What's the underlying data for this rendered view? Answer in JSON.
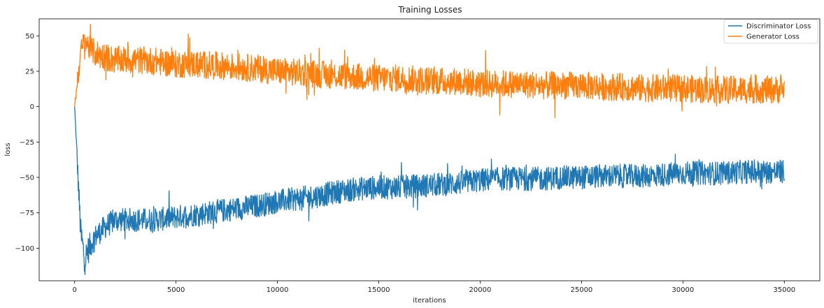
{
  "chart_data": {
    "type": "line",
    "title": "Training Losses",
    "xlabel": "iterations",
    "ylabel": "loss",
    "xlim": [
      -1750,
      36750
    ],
    "ylim": [
      -123,
      62
    ],
    "xticks": [
      0,
      5000,
      10000,
      15000,
      20000,
      25000,
      30000,
      35000
    ],
    "xtick_labels": [
      "0",
      "5000",
      "10000",
      "15000",
      "20000",
      "25000",
      "30000",
      "35000"
    ],
    "yticks": [
      50,
      25,
      0,
      -25,
      -50,
      -75,
      -100
    ],
    "ytick_labels": [
      "50",
      "25",
      "0",
      "−25",
      "−50",
      "−75",
      "−100"
    ],
    "grid": false,
    "legend_position": "top-right",
    "series": [
      {
        "name": "Discriminator  Loss",
        "color": "#1f77b4",
        "x": [
          0,
          150,
          300,
          500,
          700,
          1000,
          1500,
          2000,
          3000,
          4000,
          5000,
          6000,
          7000,
          8000,
          9000,
          10000,
          11000,
          12000,
          13000,
          14000,
          15000,
          16000,
          17000,
          18000,
          19000,
          20000,
          21000,
          22000,
          23000,
          24000,
          25000,
          26000,
          27000,
          28000,
          29000,
          30000,
          31000,
          32000,
          33000,
          34000,
          35000
        ],
        "y": [
          0,
          -45,
          -90,
          -108,
          -100,
          -92,
          -85,
          -80,
          -80,
          -80,
          -78,
          -76,
          -74,
          -72,
          -70,
          -67,
          -65,
          -63,
          -60,
          -58,
          -57,
          -57,
          -56,
          -55,
          -54,
          -52,
          -51,
          -51,
          -51,
          -50,
          -50,
          -49,
          -49,
          -49,
          -48,
          -47,
          -47,
          -47,
          -46,
          -46,
          -46
        ],
        "noise_amplitude": [
          0,
          6,
          8,
          8,
          7,
          6,
          6,
          6,
          6,
          6,
          6,
          6,
          6,
          6,
          6,
          6,
          6,
          6,
          6,
          6,
          6,
          6,
          6,
          6,
          6,
          6,
          6,
          6,
          6,
          6,
          6,
          6,
          6,
          6,
          6,
          6,
          6,
          6,
          6,
          6,
          6
        ]
      },
      {
        "name": "Generator Loss",
        "color": "#ff7f0e",
        "x": [
          0,
          150,
          300,
          500,
          700,
          1000,
          1500,
          2000,
          3000,
          4000,
          5000,
          6000,
          7000,
          8000,
          9000,
          10000,
          11000,
          12000,
          13000,
          14000,
          15000,
          16000,
          17000,
          18000,
          19000,
          20000,
          21000,
          22000,
          23000,
          24000,
          25000,
          26000,
          27000,
          28000,
          29000,
          30000,
          31000,
          32000,
          33000,
          34000,
          35000
        ],
        "y": [
          0,
          20,
          38,
          48,
          42,
          38,
          35,
          33,
          33,
          32,
          30,
          30,
          29,
          28,
          27,
          25,
          24,
          23,
          22,
          21,
          20,
          20,
          19,
          18,
          18,
          16,
          16,
          16,
          15,
          15,
          15,
          14,
          14,
          13,
          13,
          13,
          12,
          12,
          12,
          12,
          12
        ],
        "noise_amplitude": [
          0,
          6,
          6,
          6,
          6,
          7,
          7,
          7,
          7,
          7,
          7,
          7,
          7,
          7,
          7,
          7,
          7,
          7,
          7,
          7,
          7,
          7,
          7,
          7,
          7,
          7,
          7,
          7,
          7,
          7,
          7,
          7,
          7,
          7,
          7,
          7,
          7,
          7,
          7,
          7,
          7
        ]
      }
    ]
  }
}
